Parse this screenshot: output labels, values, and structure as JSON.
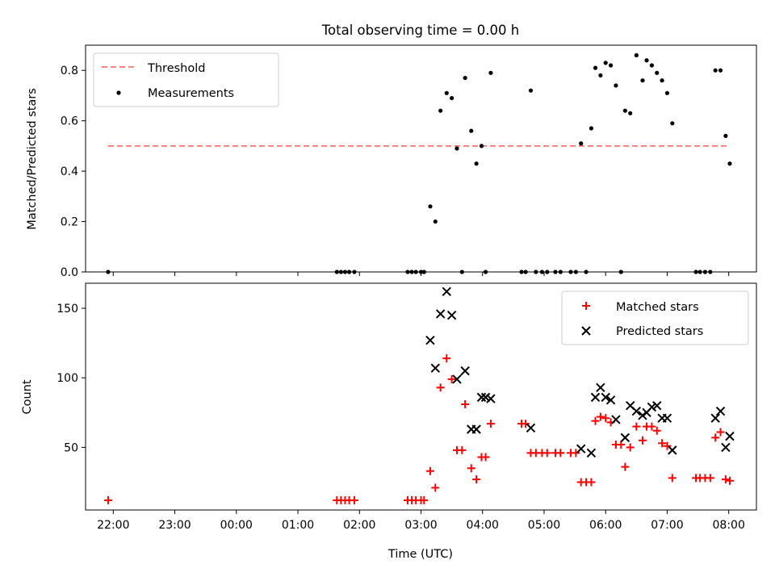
{
  "figure": {
    "title": "Total observing time = 0.00 h",
    "xlabel": "Time (UTC)",
    "x_ticks": [
      "22:00",
      "23:00",
      "00:00",
      "01:00",
      "02:00",
      "03:00",
      "04:00",
      "05:00",
      "06:00",
      "07:00",
      "08:00"
    ]
  },
  "chart_data": [
    {
      "type": "scatter",
      "panel": "top",
      "title": "Total observing time = 0.00 h",
      "xlabel": "",
      "ylabel": "Matched/Predicted stars",
      "xlim": [
        "21:33",
        "08:27"
      ],
      "ylim": [
        0,
        0.9
      ],
      "y_ticks": [
        "0.0",
        "0.2",
        "0.4",
        "0.6",
        "0.8"
      ],
      "legend": "top-left",
      "grid": false,
      "threshold": {
        "name": "Threshold",
        "value": 0.5,
        "x_range": [
          "21:55",
          "08:00"
        ],
        "color": "#ff7070"
      },
      "series": [
        {
          "name": "Measurements",
          "color": "#000000",
          "points": [
            {
              "x": "21:55",
              "y": 0.0
            },
            {
              "x": "01:38",
              "y": 0.0
            },
            {
              "x": "01:42",
              "y": 0.0
            },
            {
              "x": "01:46",
              "y": 0.0
            },
            {
              "x": "01:50",
              "y": 0.0
            },
            {
              "x": "01:55",
              "y": 0.0
            },
            {
              "x": "02:47",
              "y": 0.0
            },
            {
              "x": "02:51",
              "y": 0.0
            },
            {
              "x": "02:55",
              "y": 0.0
            },
            {
              "x": "03:00",
              "y": 0.0
            },
            {
              "x": "03:03",
              "y": 0.0
            },
            {
              "x": "03:09",
              "y": 0.26
            },
            {
              "x": "03:14",
              "y": 0.2
            },
            {
              "x": "03:19",
              "y": 0.64
            },
            {
              "x": "03:25",
              "y": 0.71
            },
            {
              "x": "03:30",
              "y": 0.69
            },
            {
              "x": "03:35",
              "y": 0.49
            },
            {
              "x": "03:40",
              "y": 0.0
            },
            {
              "x": "03:43",
              "y": 0.77
            },
            {
              "x": "03:49",
              "y": 0.56
            },
            {
              "x": "03:54",
              "y": 0.43
            },
            {
              "x": "03:59",
              "y": 0.5
            },
            {
              "x": "04:03",
              "y": 0.0
            },
            {
              "x": "04:08",
              "y": 0.79
            },
            {
              "x": "04:38",
              "y": 0.0
            },
            {
              "x": "04:42",
              "y": 0.0
            },
            {
              "x": "04:47",
              "y": 0.72
            },
            {
              "x": "04:52",
              "y": 0.0
            },
            {
              "x": "04:58",
              "y": 0.0
            },
            {
              "x": "05:03",
              "y": 0.0
            },
            {
              "x": "05:11",
              "y": 0.0
            },
            {
              "x": "05:16",
              "y": 0.0
            },
            {
              "x": "05:26",
              "y": 0.0
            },
            {
              "x": "05:31",
              "y": 0.0
            },
            {
              "x": "05:36",
              "y": 0.51
            },
            {
              "x": "05:41",
              "y": 0.0
            },
            {
              "x": "05:46",
              "y": 0.57
            },
            {
              "x": "05:50",
              "y": 0.81
            },
            {
              "x": "05:55",
              "y": 0.78
            },
            {
              "x": "06:00",
              "y": 0.83
            },
            {
              "x": "06:05",
              "y": 0.82
            },
            {
              "x": "06:10",
              "y": 0.74
            },
            {
              "x": "06:15",
              "y": 0.0
            },
            {
              "x": "06:19",
              "y": 0.64
            },
            {
              "x": "06:24",
              "y": 0.63
            },
            {
              "x": "06:30",
              "y": 0.86
            },
            {
              "x": "06:36",
              "y": 0.76
            },
            {
              "x": "06:40",
              "y": 0.84
            },
            {
              "x": "06:45",
              "y": 0.82
            },
            {
              "x": "06:50",
              "y": 0.79
            },
            {
              "x": "06:55",
              "y": 0.76
            },
            {
              "x": "07:00",
              "y": 0.71
            },
            {
              "x": "07:05",
              "y": 0.59
            },
            {
              "x": "07:28",
              "y": 0.0
            },
            {
              "x": "07:32",
              "y": 0.0
            },
            {
              "x": "07:37",
              "y": 0.0
            },
            {
              "x": "07:42",
              "y": 0.0
            },
            {
              "x": "07:47",
              "y": 0.8
            },
            {
              "x": "07:52",
              "y": 0.8
            },
            {
              "x": "07:57",
              "y": 0.54
            },
            {
              "x": "08:01",
              "y": 0.43
            }
          ]
        }
      ]
    },
    {
      "type": "scatter",
      "panel": "bottom",
      "xlabel": "Time (UTC)",
      "ylabel": "Count",
      "xlim": [
        "21:33",
        "08:27"
      ],
      "ylim": [
        5,
        168
      ],
      "y_ticks": [
        "50",
        "100",
        "150"
      ],
      "legend": "top-right",
      "grid": false,
      "series": [
        {
          "name": "Matched stars",
          "marker": "+",
          "color": "#ff0000",
          "points": [
            {
              "x": "21:55",
              "y": 12
            },
            {
              "x": "01:38",
              "y": 12
            },
            {
              "x": "01:42",
              "y": 12
            },
            {
              "x": "01:46",
              "y": 12
            },
            {
              "x": "01:50",
              "y": 12
            },
            {
              "x": "01:55",
              "y": 12
            },
            {
              "x": "02:47",
              "y": 12
            },
            {
              "x": "02:51",
              "y": 12
            },
            {
              "x": "02:55",
              "y": 12
            },
            {
              "x": "03:00",
              "y": 12
            },
            {
              "x": "03:03",
              "y": 12
            },
            {
              "x": "03:09",
              "y": 33
            },
            {
              "x": "03:14",
              "y": 21
            },
            {
              "x": "03:19",
              "y": 93
            },
            {
              "x": "03:25",
              "y": 114
            },
            {
              "x": "03:30",
              "y": 99
            },
            {
              "x": "03:35",
              "y": 48
            },
            {
              "x": "03:40",
              "y": 48
            },
            {
              "x": "03:43",
              "y": 81
            },
            {
              "x": "03:49",
              "y": 35
            },
            {
              "x": "03:54",
              "y": 27
            },
            {
              "x": "03:59",
              "y": 43
            },
            {
              "x": "04:03",
              "y": 43
            },
            {
              "x": "04:08",
              "y": 67
            },
            {
              "x": "04:38",
              "y": 67
            },
            {
              "x": "04:42",
              "y": 67
            },
            {
              "x": "04:47",
              "y": 46
            },
            {
              "x": "04:52",
              "y": 46
            },
            {
              "x": "04:58",
              "y": 46
            },
            {
              "x": "05:03",
              "y": 46
            },
            {
              "x": "05:11",
              "y": 46
            },
            {
              "x": "05:16",
              "y": 46
            },
            {
              "x": "05:26",
              "y": 46
            },
            {
              "x": "05:31",
              "y": 46
            },
            {
              "x": "05:36",
              "y": 25
            },
            {
              "x": "05:41",
              "y": 25
            },
            {
              "x": "05:46",
              "y": 25
            },
            {
              "x": "05:50",
              "y": 69
            },
            {
              "x": "05:55",
              "y": 72
            },
            {
              "x": "06:00",
              "y": 71
            },
            {
              "x": "06:05",
              "y": 68
            },
            {
              "x": "06:10",
              "y": 52
            },
            {
              "x": "06:15",
              "y": 52
            },
            {
              "x": "06:19",
              "y": 36
            },
            {
              "x": "06:24",
              "y": 50
            },
            {
              "x": "06:30",
              "y": 65
            },
            {
              "x": "06:36",
              "y": 55
            },
            {
              "x": "06:40",
              "y": 65
            },
            {
              "x": "06:45",
              "y": 65
            },
            {
              "x": "06:50",
              "y": 62
            },
            {
              "x": "06:55",
              "y": 53
            },
            {
              "x": "07:00",
              "y": 51
            },
            {
              "x": "07:05",
              "y": 28
            },
            {
              "x": "07:28",
              "y": 28
            },
            {
              "x": "07:32",
              "y": 28
            },
            {
              "x": "07:37",
              "y": 28
            },
            {
              "x": "07:42",
              "y": 28
            },
            {
              "x": "07:47",
              "y": 57
            },
            {
              "x": "07:52",
              "y": 61
            },
            {
              "x": "07:57",
              "y": 27
            },
            {
              "x": "08:01",
              "y": 26
            }
          ]
        },
        {
          "name": "Predicted stars",
          "marker": "x",
          "color": "#000000",
          "points": [
            {
              "x": "03:09",
              "y": 127
            },
            {
              "x": "03:14",
              "y": 107
            },
            {
              "x": "03:19",
              "y": 146
            },
            {
              "x": "03:25",
              "y": 162
            },
            {
              "x": "03:30",
              "y": 145
            },
            {
              "x": "03:35",
              "y": 99
            },
            {
              "x": "03:43",
              "y": 105
            },
            {
              "x": "03:49",
              "y": 63
            },
            {
              "x": "03:54",
              "y": 63
            },
            {
              "x": "03:59",
              "y": 86
            },
            {
              "x": "04:03",
              "y": 86
            },
            {
              "x": "04:08",
              "y": 85
            },
            {
              "x": "04:47",
              "y": 64
            },
            {
              "x": "05:36",
              "y": 49
            },
            {
              "x": "05:46",
              "y": 46
            },
            {
              "x": "05:50",
              "y": 86
            },
            {
              "x": "05:55",
              "y": 93
            },
            {
              "x": "06:00",
              "y": 86
            },
            {
              "x": "06:05",
              "y": 84
            },
            {
              "x": "06:10",
              "y": 70
            },
            {
              "x": "06:19",
              "y": 57
            },
            {
              "x": "06:24",
              "y": 80
            },
            {
              "x": "06:30",
              "y": 76
            },
            {
              "x": "06:36",
              "y": 73
            },
            {
              "x": "06:40",
              "y": 75
            },
            {
              "x": "06:45",
              "y": 79
            },
            {
              "x": "06:50",
              "y": 80
            },
            {
              "x": "06:55",
              "y": 71
            },
            {
              "x": "07:00",
              "y": 71
            },
            {
              "x": "07:05",
              "y": 48
            },
            {
              "x": "07:47",
              "y": 71
            },
            {
              "x": "07:52",
              "y": 76
            },
            {
              "x": "07:57",
              "y": 50
            },
            {
              "x": "08:01",
              "y": 58
            }
          ]
        }
      ]
    }
  ]
}
